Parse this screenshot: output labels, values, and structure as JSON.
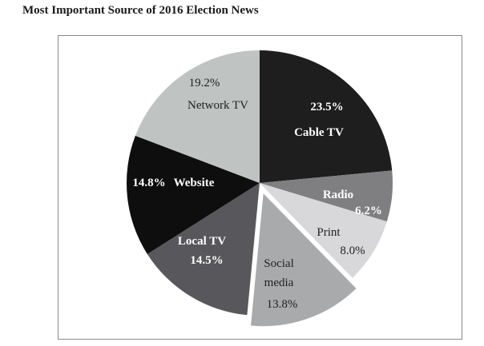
{
  "chart_data": {
    "type": "pie",
    "title": "Most Important Source of 2016 Election News",
    "start": "12 o'clock, clockwise",
    "slices": [
      {
        "label": "Cable TV",
        "value": 23.5,
        "value_label": "23.5%",
        "color": "#1e1e1e",
        "text_color": "#ffffff",
        "exploded": false
      },
      {
        "label": "Radio",
        "value": 6.2,
        "value_label": "6.2%",
        "color": "#7f7f82",
        "text_color": "#ffffff",
        "exploded": false
      },
      {
        "label": "Print",
        "value": 8.0,
        "value_label": "8.0%",
        "color": "#d8d8da",
        "text_color": "#222222",
        "exploded": false
      },
      {
        "label": "Social media",
        "value": 13.8,
        "value_label": "13.8%",
        "color": "#a9aaac",
        "text_color": "#222222",
        "exploded": true
      },
      {
        "label": "Local TV",
        "value": 14.5,
        "value_label": "14.5%",
        "color": "#58585c",
        "text_color": "#ffffff",
        "exploded": false
      },
      {
        "label": "Website",
        "value": 14.8,
        "value_label": "14.8%",
        "color": "#0e0e0e",
        "text_color": "#ffffff",
        "exploded": false
      },
      {
        "label": "Network TV",
        "value": 19.2,
        "value_label": "19.2%",
        "color": "#bfc3c1",
        "text_color": "#222222",
        "exploded": false
      }
    ]
  }
}
